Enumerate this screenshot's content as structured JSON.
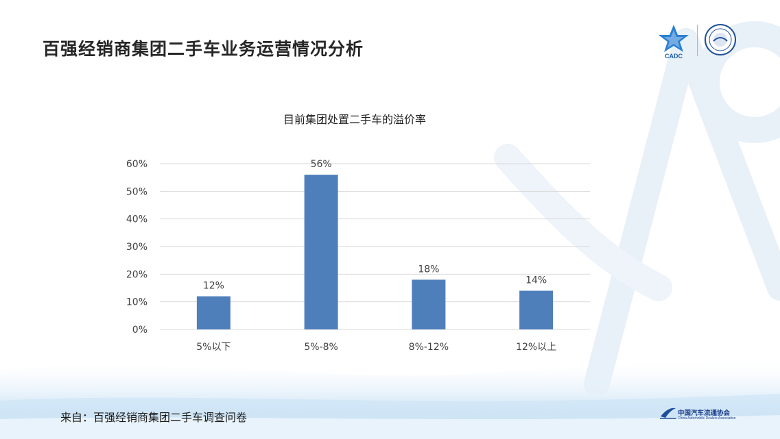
{
  "slide": {
    "title": "百强经销商集团二手车业务运营情况分析",
    "source_note": "来自：百强经销商集团二手车调查问卷"
  },
  "logos": {
    "cadc_text": "CADC",
    "footer_org_cn": "中国汽车流通协会",
    "footer_org_en": "China Automobile Dealers Association"
  },
  "colors": {
    "bar": "#4f7fbb",
    "title": "#262626",
    "grid": "#d9d9d9"
  },
  "chart_data": {
    "type": "bar",
    "title": "目前集团处置二手车的溢价率",
    "categories": [
      "5%以下",
      "5%-8%",
      "8%-12%",
      "12%以上"
    ],
    "values": [
      12,
      56,
      18,
      14
    ],
    "data_labels": [
      "12%",
      "56%",
      "18%",
      "14%"
    ],
    "ylim": [
      0,
      60
    ],
    "yticks": [
      "0%",
      "10%",
      "20%",
      "30%",
      "40%",
      "50%",
      "60%"
    ],
    "grid": true,
    "legend": "none"
  }
}
